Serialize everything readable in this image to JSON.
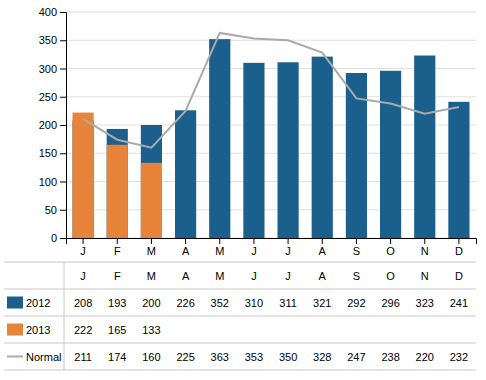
{
  "chart_data": {
    "type": "bar",
    "categories": [
      "J",
      "F",
      "M",
      "A",
      "M",
      "J",
      "J",
      "A",
      "S",
      "O",
      "N",
      "D"
    ],
    "series": [
      {
        "name": "2012",
        "color": "#1b5f8c",
        "values": [
          208,
          193,
          200,
          226,
          352,
          310,
          311,
          321,
          292,
          296,
          323,
          241
        ]
      },
      {
        "name": "2013",
        "color": "#e8843a",
        "values": [
          222,
          165,
          133,
          null,
          null,
          null,
          null,
          null,
          null,
          null,
          null,
          null
        ]
      },
      {
        "name": "Normal",
        "type": "line",
        "color": "#aaaaaa",
        "values": [
          211,
          174,
          160,
          225,
          363,
          353,
          350,
          328,
          247,
          238,
          220,
          232
        ]
      }
    ],
    "ylim": [
      0,
      400
    ],
    "yticks": [
      0,
      50,
      100,
      150,
      200,
      250,
      300,
      350,
      400
    ],
    "grid": true,
    "legend": "bottom",
    "data_labels": true
  }
}
